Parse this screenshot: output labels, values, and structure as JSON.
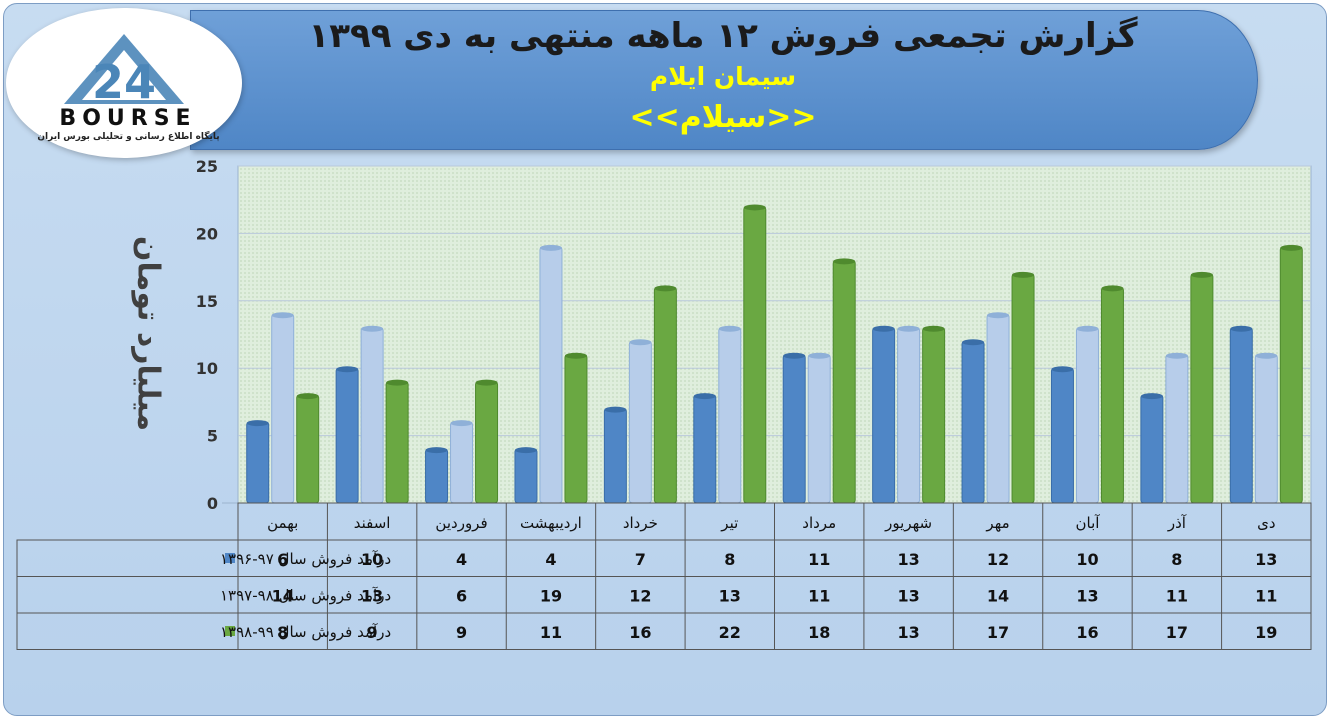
{
  "header": {
    "title": "گزارش تجمعی فروش ۱۲ ماهه منتهی به دی ۱۳۹۹",
    "subtitle": "سیمان ایلام",
    "ticker": "<<سیلام>>"
  },
  "logo": {
    "numeral": "24",
    "word": "BOURSE",
    "tagline": "پایگاه اطلاع رسانی و تحلیلی بورس ایران"
  },
  "colors": {
    "series1": "#4f86c6",
    "series2": "#b7cdea",
    "series3": "#6aa842",
    "plot_bg": "#d9ead3",
    "grid": "#8fa3c0"
  },
  "chart_data": {
    "type": "bar",
    "ylabel": "میلیارد تومان",
    "ylim": [
      0,
      25
    ],
    "yticks": [
      0,
      5,
      10,
      15,
      20,
      25
    ],
    "grid": true,
    "categories": [
      "بهمن",
      "اسفند",
      "فروردین",
      "اردیبهشت",
      "خرداد",
      "تیر",
      "مرداد",
      "شهریور",
      "مهر",
      "آبان",
      "آذر",
      "دی"
    ],
    "series": [
      {
        "name": "درآمد فروش سال ۹۷-۱۳۹۶",
        "values": [
          6,
          10,
          4,
          4,
          7,
          8,
          11,
          13,
          12,
          10,
          8,
          13
        ]
      },
      {
        "name": "درآمد فروش سال ۹۸-۱۳۹۷",
        "values": [
          14,
          13,
          6,
          19,
          12,
          13,
          11,
          13,
          14,
          13,
          11,
          11
        ]
      },
      {
        "name": "درآمد فروش سال ۹۹-۱۳۹۸",
        "values": [
          8,
          9,
          9,
          11,
          16,
          22,
          18,
          13,
          17,
          16,
          17,
          19
        ]
      }
    ],
    "legend": "data-table-left"
  }
}
